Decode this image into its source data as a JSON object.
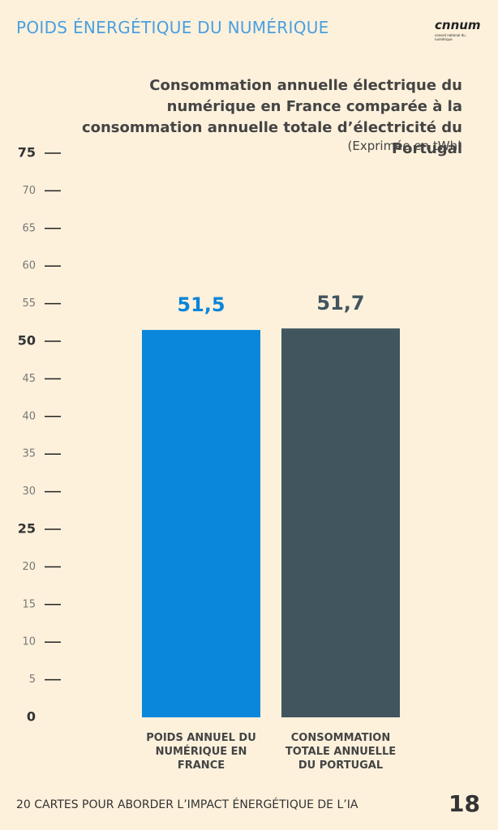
{
  "header": {
    "title": "POIDS ÉNERGÉTIQUE DU NUMÉRIQUE",
    "logo": "cnnum",
    "logo_caption": "conseil national du numérique"
  },
  "chart_data": {
    "type": "bar",
    "title": "Consommation annuelle électrique du numérique en France comparée à la consommation annuelle totale d’électricité du Portugal",
    "subtitle": "(Exprimée en tWh)",
    "categories": [
      "POIDS ANNUEL DU NUMÉRIQUE EN FRANCE",
      "CONSOMMATION TOTALE ANNUELLE DU PORTUGAL"
    ],
    "values": [
      51.5,
      51.7
    ],
    "value_labels": [
      "51,5",
      "51,7"
    ],
    "colors": [
      "#0a86da",
      "#41555f"
    ],
    "ylim": [
      0,
      75
    ],
    "yticks": [
      0,
      5,
      10,
      15,
      20,
      25,
      30,
      35,
      40,
      45,
      50,
      55,
      60,
      65,
      70,
      75
    ]
  },
  "footer": {
    "text": "20 CARTES POUR ABORDER L’IMPACT ÉNERGÉTIQUE DE L’IA",
    "page": 18
  }
}
